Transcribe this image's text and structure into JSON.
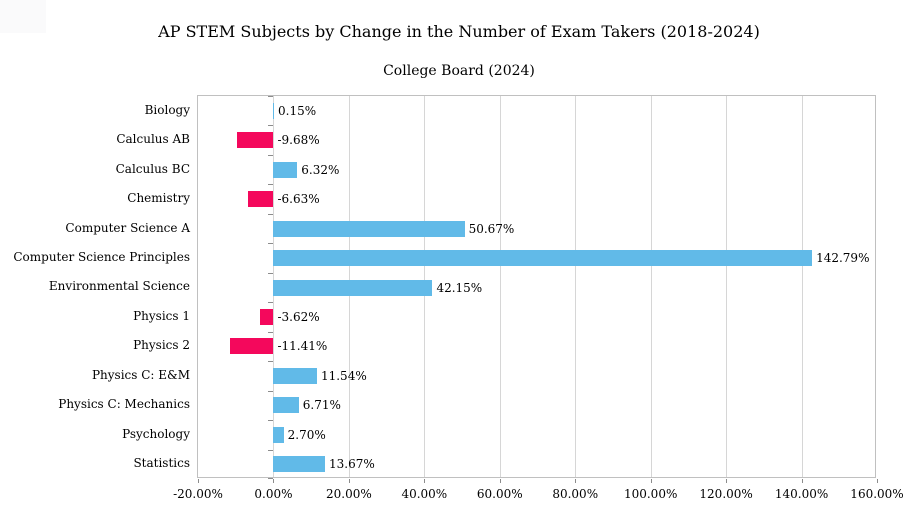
{
  "chart_data": {
    "type": "bar",
    "orientation": "horizontal",
    "title": "AP STEM Subjects by Change in the Number of Exam Takers (2018-2024)",
    "subtitle": "College Board (2024)",
    "categories": [
      "Biology",
      "Calculus AB",
      "Calculus BC",
      "Chemistry",
      "Computer Science A",
      "Computer Science Principles",
      "Environmental Science",
      "Physics 1",
      "Physics 2",
      "Physics C: E&M",
      "Physics C: Mechanics",
      "Psychology",
      "Statistics"
    ],
    "values": [
      0.15,
      -9.68,
      6.32,
      -6.63,
      50.67,
      142.79,
      42.15,
      -3.62,
      -11.41,
      11.54,
      6.71,
      2.7,
      13.67
    ],
    "data_labels": [
      "0.15%",
      "-9.68%",
      "6.32%",
      "-6.63%",
      "50.67%",
      "142.79%",
      "42.15%",
      "-3.62%",
      "-11.41%",
      "11.54%",
      "6.71%",
      "2.70%",
      "13.67%"
    ],
    "x_axis": {
      "tick_labels": [
        "-20.00%",
        "0.00%",
        "20.00%",
        "40.00%",
        "60.00%",
        "80.00%",
        "100.00%",
        "120.00%",
        "140.00%",
        "160.00%"
      ],
      "tick_values": [
        -20,
        0,
        20,
        40,
        60,
        80,
        100,
        120,
        140,
        160
      ]
    },
    "xlim": [
      -20,
      160
    ],
    "grid": true,
    "legend": false,
    "colors": {
      "positive_bar": "#61bae8",
      "negative_bar": "#f4085c"
    }
  }
}
